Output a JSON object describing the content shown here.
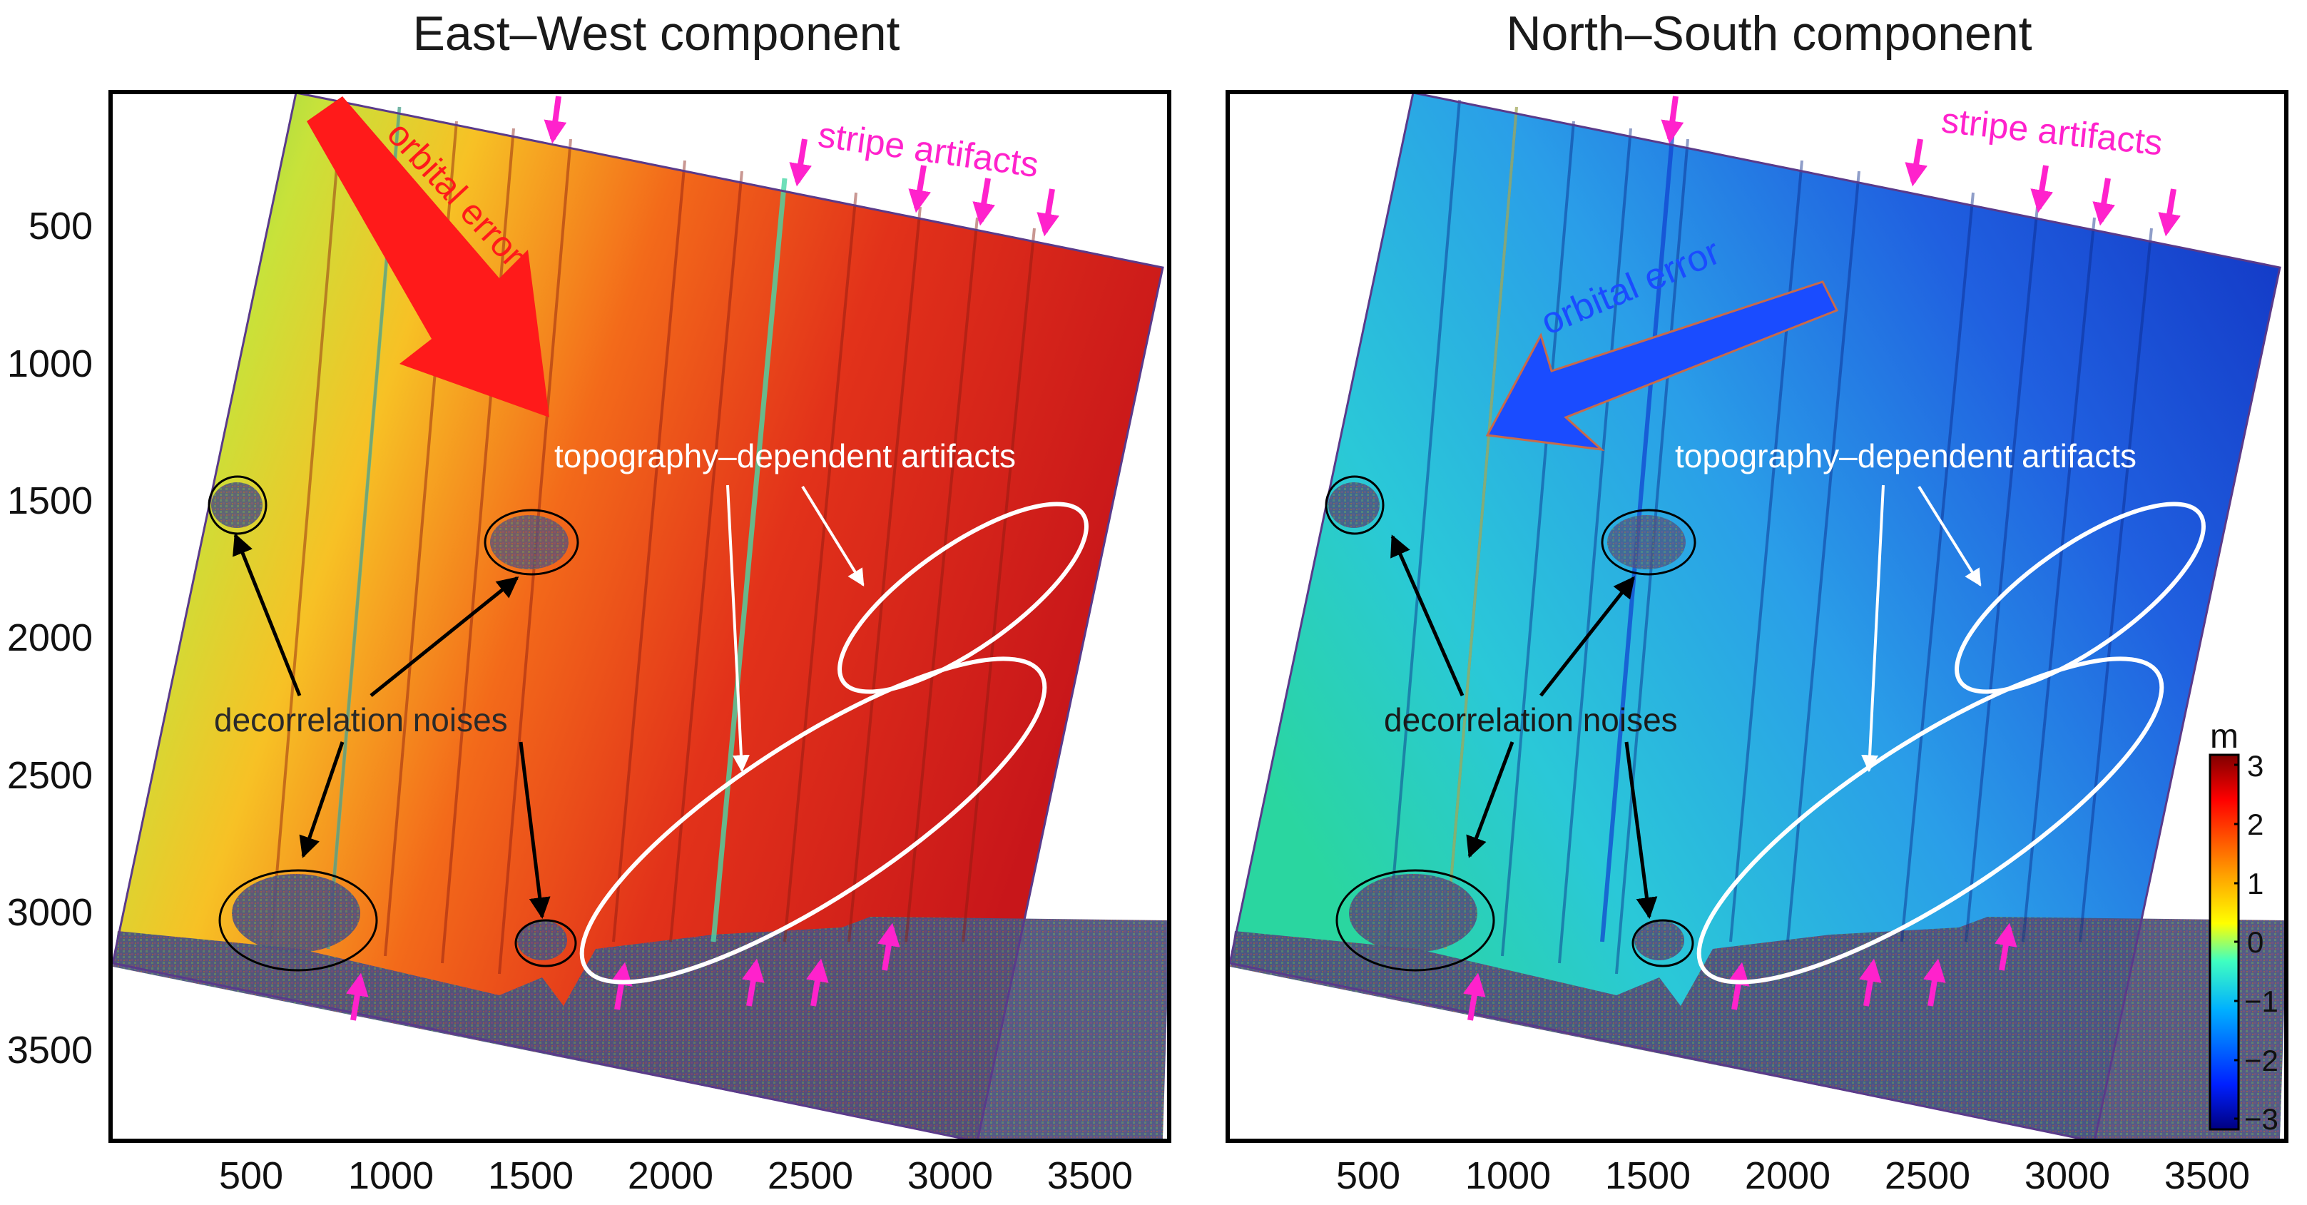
{
  "panels": [
    {
      "title": "East–West component",
      "orbital_label": "orbital error",
      "stripe_label": "stripe artifacts",
      "topo_label": "topography–dependent artifacts",
      "decorr_label": "decorrelation noises"
    },
    {
      "title": "North–South component",
      "orbital_label": "orbital error",
      "stripe_label": "stripe artifacts",
      "topo_label": "topography–dependent artifacts",
      "decorr_label": "decorrelation noises"
    }
  ],
  "axes": {
    "x_ticks": [
      "500",
      "1000",
      "1500",
      "2000",
      "2500",
      "3000",
      "3500"
    ],
    "y_ticks": [
      "500",
      "1000",
      "1500",
      "2000",
      "2500",
      "3000",
      "3500"
    ]
  },
  "colorbar": {
    "unit": "m",
    "ticks": [
      "3",
      "2",
      "1",
      "0",
      "−1",
      "−2",
      "−3"
    ],
    "range": [
      -3,
      3
    ]
  },
  "colors": {
    "annotation_magenta": "#ff22cc",
    "ew_orbital_arrow": "#ff1a1a",
    "ns_orbital_arrow": "#1a4cff",
    "ellipse_white": "#ffffff",
    "ellipse_black": "#000000"
  }
}
